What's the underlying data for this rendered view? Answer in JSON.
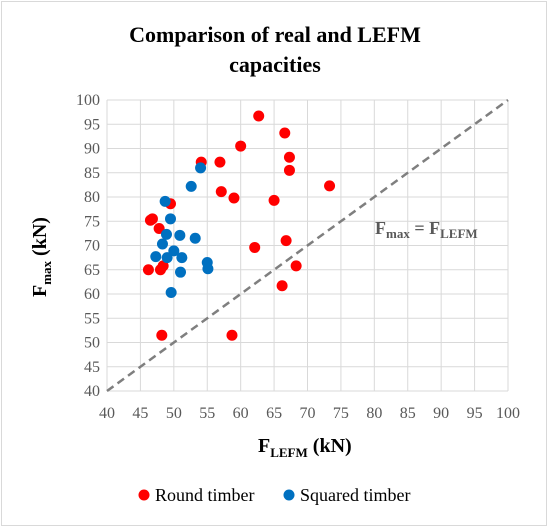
{
  "chart_data": {
    "type": "scatter",
    "title_line1": "Comparison of real and LEFM",
    "title_line2": "capacities",
    "xlabel_main": "F",
    "xlabel_sub": "LEFM",
    "xlabel_unit": " (kN)",
    "ylabel_main": "F",
    "ylabel_sub": "max",
    "ylabel_unit": " (kN)",
    "xlim": [
      40,
      100
    ],
    "ylim": [
      40,
      100
    ],
    "x_ticks": [
      40,
      45,
      50,
      55,
      60,
      65,
      70,
      75,
      80,
      85,
      90,
      95,
      100
    ],
    "y_ticks": [
      40,
      45,
      50,
      55,
      60,
      65,
      70,
      75,
      80,
      85,
      90,
      95,
      100
    ],
    "grid": true,
    "legend_position": "bottom",
    "reference_line": {
      "label_main": "F",
      "label_sub1": "max",
      "label_eq": " = F",
      "label_sub2": "LEFM",
      "style": "dashed",
      "color": "#7f7f7f",
      "from": [
        40,
        40
      ],
      "to": [
        100,
        100
      ]
    },
    "series": [
      {
        "name": "Round timber",
        "color": "#ff0000",
        "points": [
          [
            46.2,
            65.0
          ],
          [
            46.5,
            75.2
          ],
          [
            46.8,
            75.5
          ],
          [
            47.8,
            73.5
          ],
          [
            48.0,
            65.0
          ],
          [
            48.2,
            51.5
          ],
          [
            48.4,
            65.8
          ],
          [
            49.5,
            78.6
          ],
          [
            54.1,
            87.2
          ],
          [
            56.9,
            87.2
          ],
          [
            57.1,
            81.1
          ],
          [
            58.7,
            51.5
          ],
          [
            59.0,
            79.8
          ],
          [
            60.0,
            90.5
          ],
          [
            62.1,
            69.6
          ],
          [
            62.7,
            96.7
          ],
          [
            65.0,
            79.3
          ],
          [
            66.2,
            61.7
          ],
          [
            66.6,
            93.2
          ],
          [
            66.8,
            71.0
          ],
          [
            67.3,
            88.2
          ],
          [
            67.3,
            85.5
          ],
          [
            68.3,
            65.8
          ],
          [
            73.3,
            82.3
          ]
        ]
      },
      {
        "name": "Squared timber",
        "color": "#0070c0",
        "points": [
          [
            47.3,
            67.7
          ],
          [
            48.3,
            70.3
          ],
          [
            48.7,
            79.1
          ],
          [
            48.9,
            72.3
          ],
          [
            49.0,
            67.5
          ],
          [
            49.5,
            75.5
          ],
          [
            49.6,
            60.3
          ],
          [
            50.0,
            68.9
          ],
          [
            50.9,
            72.1
          ],
          [
            51.0,
            64.5
          ],
          [
            51.2,
            67.5
          ],
          [
            52.6,
            82.2
          ],
          [
            53.2,
            71.5
          ],
          [
            54.0,
            86.0
          ],
          [
            55.0,
            66.5
          ],
          [
            55.1,
            65.2
          ]
        ]
      }
    ]
  }
}
